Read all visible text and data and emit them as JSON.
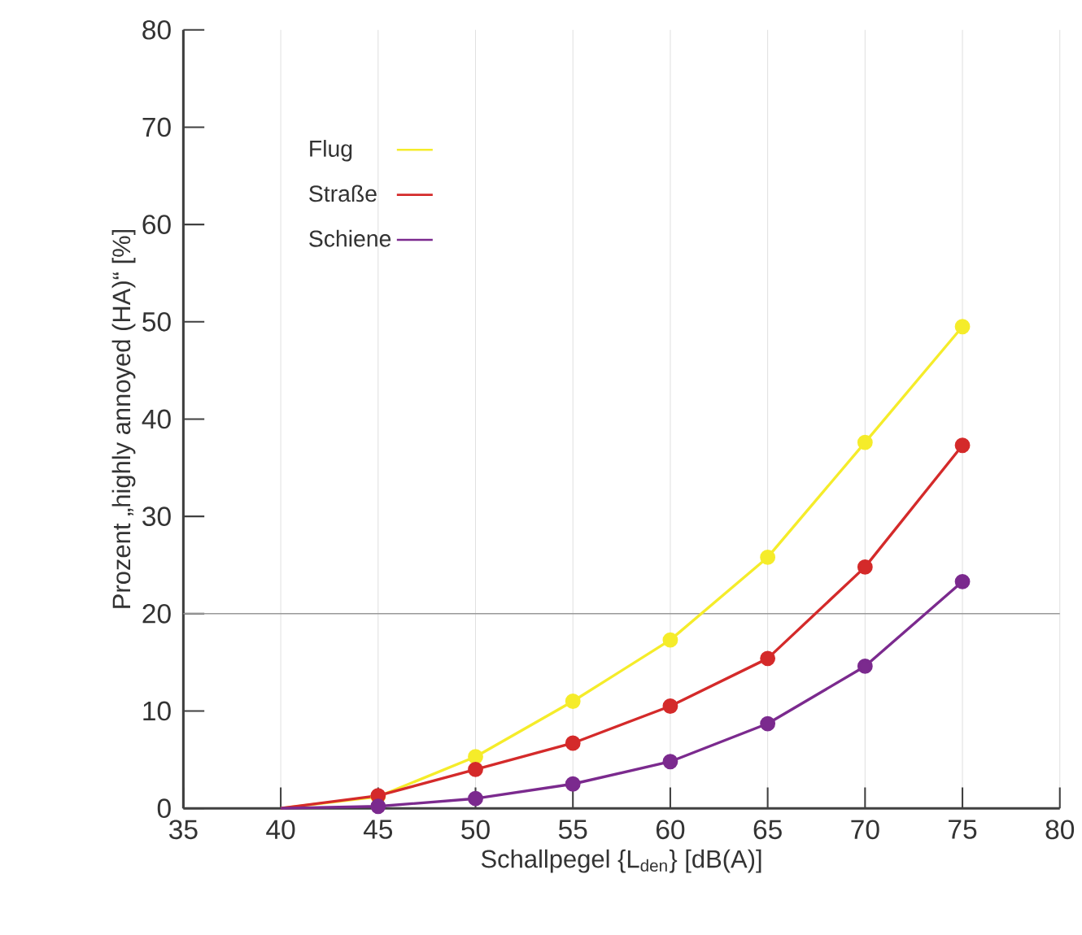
{
  "chart_data": {
    "type": "line",
    "xlabel": "Schallpegel {L$_{den}$} [dB(A)]",
    "ylabel": "Prozent „highly annoyed (HA)“ [%]",
    "x": [
      40,
      45,
      50,
      55,
      60,
      65,
      70,
      75
    ],
    "series": [
      {
        "name": "Flug",
        "color": "#f5ec2a",
        "values": [
          0,
          1.2,
          5.3,
          11,
          17.3,
          25.8,
          37.6,
          49.5
        ]
      },
      {
        "name": "Straße",
        "color": "#d42a2a",
        "values": [
          0,
          1.3,
          4,
          6.7,
          10.5,
          15.4,
          24.8,
          37.3
        ]
      },
      {
        "name": "Schiene",
        "color": "#7b2a8e",
        "values": [
          0,
          0.2,
          1,
          2.5,
          4.8,
          8.7,
          14.6,
          23.3
        ]
      }
    ],
    "xlim": [
      35,
      80
    ],
    "ylim": [
      0,
      80
    ],
    "xticks": [
      35,
      40,
      45,
      50,
      55,
      60,
      65,
      70,
      75,
      80
    ],
    "yticks": [
      0,
      10,
      20,
      30,
      40,
      50,
      60,
      70,
      80
    ],
    "grid": "x",
    "legend": "top left",
    "marker": "circle",
    "line_style": "solid",
    "ref_lines": [
      {
        "axis": "y",
        "value": 20,
        "color": "#999999"
      }
    ]
  }
}
